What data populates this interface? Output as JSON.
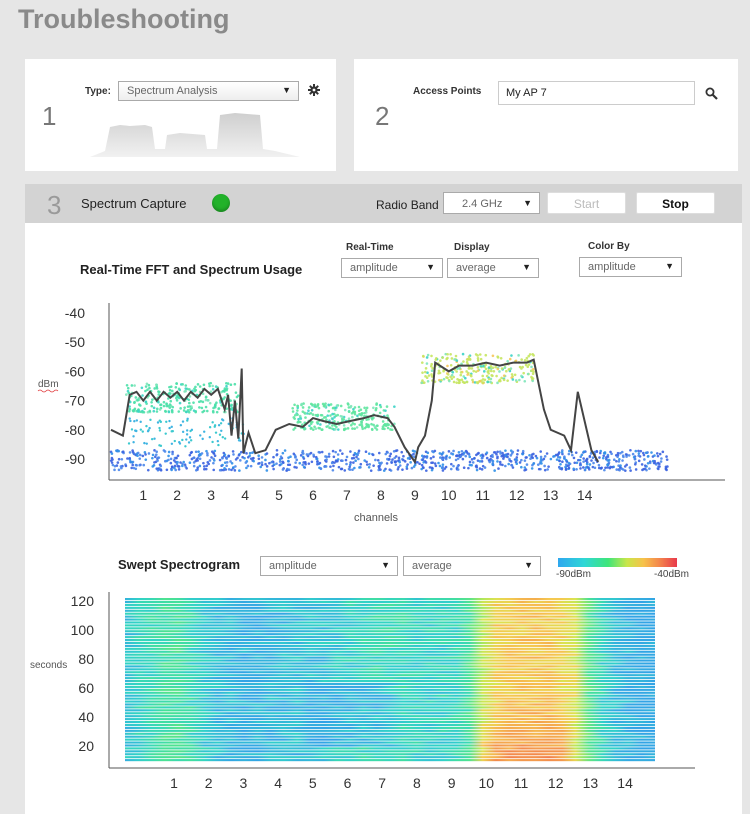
{
  "page": {
    "title": "Troubleshooting"
  },
  "step1": {
    "number": "1",
    "type_label": "Type:",
    "type_value": "Spectrum Analysis"
  },
  "step2": {
    "number": "2",
    "access_points_label": "Access Points",
    "access_points_value": "My AP 7"
  },
  "step3": {
    "number": "3",
    "title": "Spectrum Capture",
    "status_color": "#22b22a",
    "radio_band_label": "Radio Band",
    "radio_band_value": "2.4 GHz",
    "start_label": "Start",
    "stop_label": "Stop"
  },
  "fft": {
    "title": "Real-Time FFT and Spectrum Usage",
    "realtime_label": "Real-Time",
    "realtime_value": "amplitude",
    "display_label": "Display",
    "display_value": "average",
    "color_by_label": "Color By",
    "color_by_value": "amplitude"
  },
  "spectrogram": {
    "title": "Swept Spectrogram",
    "select1_value": "amplitude",
    "select2_value": "average",
    "scale_min_label": "-90dBm",
    "scale_max_label": "-40dBm"
  },
  "chart_data": [
    {
      "type": "line",
      "title": "Real-Time FFT and Spectrum Usage",
      "xlabel": "channels",
      "ylabel": "dBm",
      "xlim": [
        0,
        16
      ],
      "ylim": [
        -96,
        -38
      ],
      "x_ticks": [
        1,
        2,
        3,
        4,
        5,
        6,
        7,
        8,
        9,
        10,
        11,
        12,
        13,
        14
      ],
      "y_ticks": [
        -40,
        -50,
        -60,
        -70,
        -80,
        -90
      ],
      "grid": false,
      "series": [
        {
          "kind": "line",
          "color": "#444444",
          "points": [
            [
              0.05,
              -80
            ],
            [
              0.4,
              -82
            ],
            [
              0.6,
              -68
            ],
            [
              0.8,
              -67
            ],
            [
              1.0,
              -70
            ],
            [
              1.2,
              -67
            ],
            [
              1.4,
              -70
            ],
            [
              1.6,
              -67
            ],
            [
              1.8,
              -69
            ],
            [
              2.0,
              -67
            ],
            [
              2.2,
              -70
            ],
            [
              2.4,
              -67
            ],
            [
              2.6,
              -69
            ],
            [
              2.8,
              -66
            ],
            [
              3.0,
              -68
            ],
            [
              3.2,
              -66
            ],
            [
              3.4,
              -73
            ],
            [
              3.5,
              -68
            ],
            [
              3.6,
              -82
            ],
            [
              3.7,
              -70
            ],
            [
              3.8,
              -83
            ],
            [
              3.9,
              -59
            ],
            [
              3.95,
              -88
            ],
            [
              4.1,
              -81
            ],
            [
              4.3,
              -88
            ],
            [
              4.6,
              -87
            ],
            [
              4.9,
              -80
            ],
            [
              5.3,
              -78
            ],
            [
              5.7,
              -79
            ],
            [
              6.0,
              -76
            ],
            [
              6.3,
              -77
            ],
            [
              6.7,
              -78
            ],
            [
              7.1,
              -77
            ],
            [
              7.5,
              -76
            ],
            [
              7.8,
              -75
            ],
            [
              8.2,
              -76
            ],
            [
              8.4,
              -79
            ],
            [
              8.7,
              -86
            ],
            [
              9.0,
              -91
            ],
            [
              9.1,
              -86
            ],
            [
              9.3,
              -82
            ],
            [
              9.5,
              -70
            ],
            [
              9.6,
              -57
            ],
            [
              10.0,
              -60
            ],
            [
              10.3,
              -58
            ],
            [
              10.7,
              -58
            ],
            [
              11.1,
              -57
            ],
            [
              11.5,
              -58
            ],
            [
              11.9,
              -57
            ],
            [
              12.3,
              -57
            ],
            [
              12.5,
              -56
            ],
            [
              12.8,
              -73
            ],
            [
              13.0,
              -80
            ],
            [
              13.4,
              -82
            ],
            [
              13.6,
              -87
            ],
            [
              13.8,
              -67
            ],
            [
              14.2,
              -87
            ],
            [
              14.4,
              -91
            ]
          ]
        },
        {
          "kind": "scatter-band",
          "name": "noise floor",
          "x": [
            0.05,
            16.5
          ],
          "y": [
            -94,
            -87
          ],
          "color": "#3d6fe0"
        },
        {
          "kind": "scatter-band",
          "name": "channel 1-3 signal",
          "x": [
            0.5,
            3.8
          ],
          "y": [
            -74,
            -64
          ],
          "color": "#4be0a8"
        },
        {
          "kind": "scatter-band",
          "name": "channel 6-8 signal",
          "x": [
            5.4,
            8.4
          ],
          "y": [
            -80,
            -71
          ],
          "color": "#5fe6a0"
        },
        {
          "kind": "scatter-band",
          "name": "channel 9-12 signal",
          "x": [
            9.2,
            12.5
          ],
          "y": [
            -64,
            -54
          ],
          "color": "#c6e660"
        }
      ]
    },
    {
      "type": "heatmap",
      "title": "Swept Spectrogram",
      "ylabel": "seconds",
      "x_ticks": [
        1,
        2,
        3,
        4,
        5,
        6,
        7,
        8,
        9,
        10,
        11,
        12,
        13,
        14
      ],
      "y_ticks": [
        20,
        40,
        60,
        80,
        100,
        120
      ],
      "xlim": [
        -0.3,
        14
      ],
      "ylim": [
        5,
        123
      ],
      "color_scale": {
        "min": -90,
        "max": -40,
        "unit": "dBm"
      },
      "description_rows_top_to_bottom": "column intensity (dBm) by channel region",
      "profile": [
        {
          "x": -0.3,
          "v": -82
        },
        {
          "x": 1,
          "v": -75
        },
        {
          "x": 2,
          "v": -82
        },
        {
          "x": 3,
          "v": -85
        },
        {
          "x": 4,
          "v": -83
        },
        {
          "x": 5,
          "v": -82
        },
        {
          "x": 6,
          "v": -79
        },
        {
          "x": 7,
          "v": -78
        },
        {
          "x": 8,
          "v": -80
        },
        {
          "x": 8.9,
          "v": -78
        },
        {
          "x": 9.5,
          "v": -60
        },
        {
          "x": 10,
          "v": -58
        },
        {
          "x": 11,
          "v": -57
        },
        {
          "x": 11.8,
          "v": -60
        },
        {
          "x": 12.3,
          "v": -76
        },
        {
          "x": 13,
          "v": -84
        },
        {
          "x": 14,
          "v": -86
        }
      ]
    }
  ]
}
